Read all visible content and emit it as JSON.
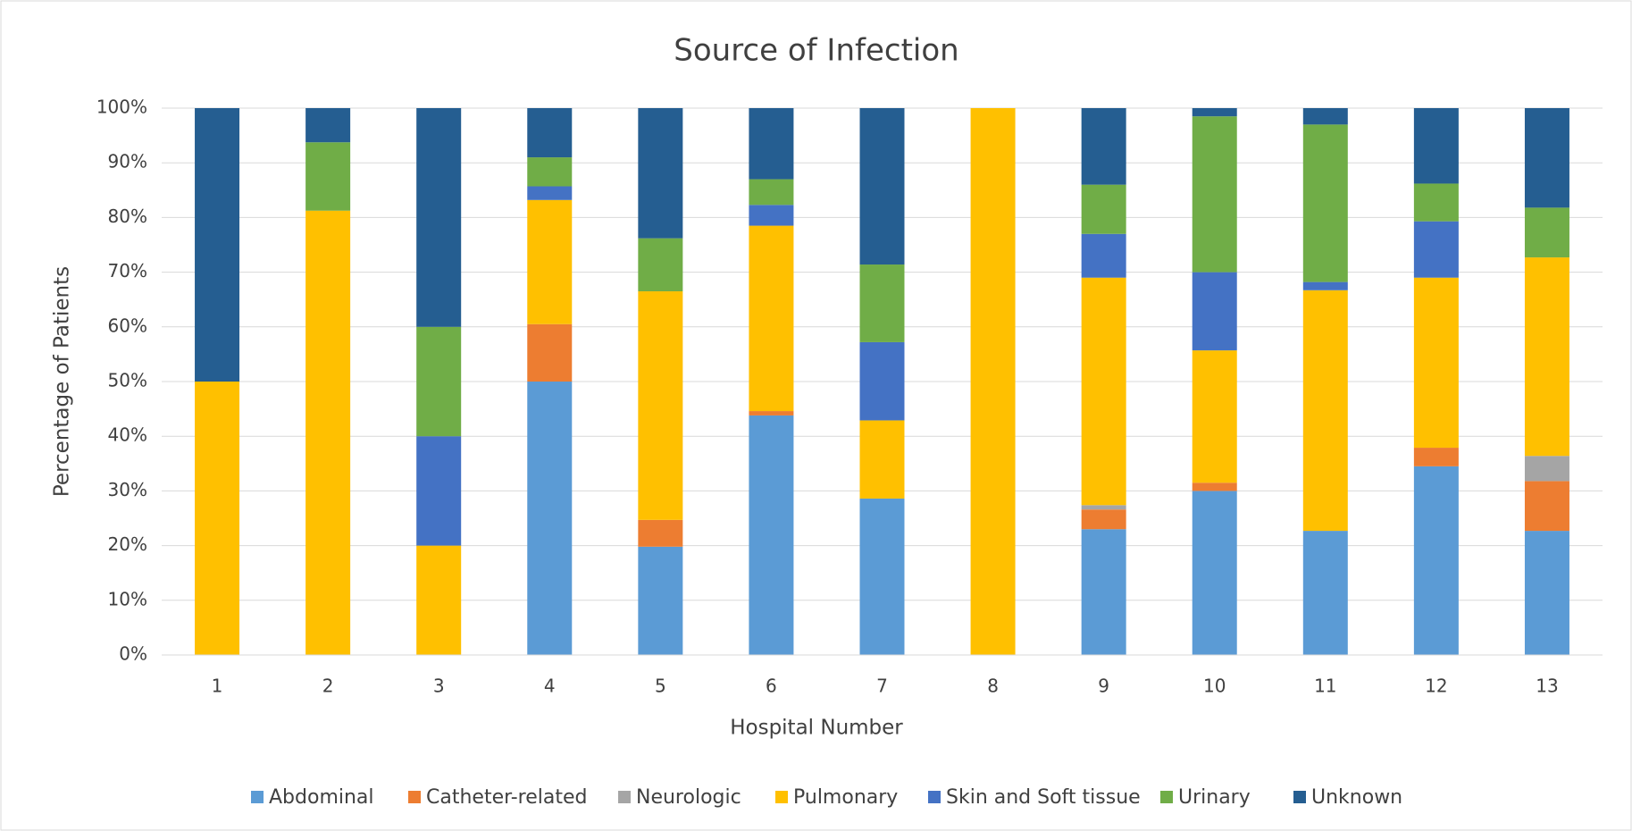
{
  "chart_data": {
    "type": "stacked_bar",
    "title": "Source of Infection",
    "xlabel": "Hospital Number",
    "ylabel": "Percentage of Patients",
    "categories": [
      "1",
      "2",
      "3",
      "4",
      "5",
      "6",
      "7",
      "8",
      "9",
      "10",
      "11",
      "12",
      "13"
    ],
    "series": [
      {
        "name": "Abdominal",
        "color": "#5b9bd5",
        "values": [
          0,
          0,
          0,
          50,
          19.8,
          43.8,
          28.6,
          0,
          23,
          30,
          22.7,
          34.5,
          22.7
        ]
      },
      {
        "name": "Catheter-related",
        "color": "#ed7d31",
        "values": [
          0,
          0,
          0,
          10.5,
          4.9,
          0.8,
          0,
          0,
          3.6,
          1.5,
          0,
          3.4,
          9.1
        ]
      },
      {
        "name": "Neurologic",
        "color": "#a5a5a5",
        "values": [
          0,
          0,
          0,
          0,
          0,
          0,
          0,
          0,
          0.8,
          0,
          0,
          0,
          4.6
        ]
      },
      {
        "name": "Pulmonary",
        "color": "#ffc000",
        "values": [
          50,
          81.25,
          20,
          22.7,
          41.8,
          33.9,
          14.3,
          100,
          41.6,
          24.2,
          44,
          31.1,
          36.3
        ]
      },
      {
        "name": "Skin and Soft tissue",
        "color": "#4472c4",
        "values": [
          0,
          0,
          20,
          2.5,
          0,
          3.8,
          14.3,
          0,
          8,
          14.3,
          1.5,
          10.3,
          0
        ]
      },
      {
        "name": "Urinary",
        "color": "#70ad47",
        "values": [
          0,
          12.5,
          20,
          5.3,
          9.7,
          4.7,
          14.2,
          0,
          9,
          28.5,
          28.8,
          6.9,
          9.1
        ]
      },
      {
        "name": "Unknown",
        "color": "#255e91",
        "values": [
          50,
          6.25,
          40,
          9,
          23.8,
          13,
          28.6,
          0,
          14,
          1.5,
          3,
          13.8,
          18.2
        ]
      }
    ],
    "ylim": [
      0,
      100
    ],
    "yticks": [
      {
        "value": 0,
        "label": "0%"
      },
      {
        "value": 10,
        "label": "10%"
      },
      {
        "value": 20,
        "label": "20%"
      },
      {
        "value": 30,
        "label": "30%"
      },
      {
        "value": 40,
        "label": "40%"
      },
      {
        "value": 50,
        "label": "50%"
      },
      {
        "value": 60,
        "label": "60%"
      },
      {
        "value": 70,
        "label": "70%"
      },
      {
        "value": 80,
        "label": "80%"
      },
      {
        "value": 90,
        "label": "90%"
      },
      {
        "value": 100,
        "label": "100%"
      }
    ],
    "grid": true,
    "legend": "bottom"
  }
}
